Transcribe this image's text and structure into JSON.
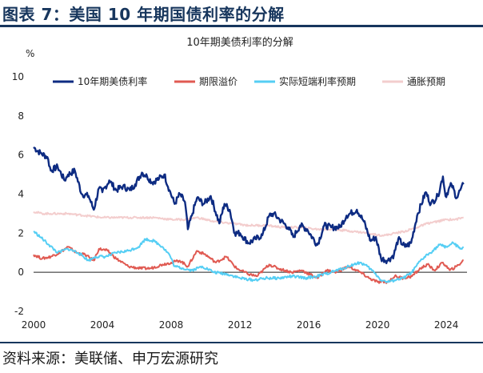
{
  "figure_title": "图表 7：美国 10 年期国债利率的分解",
  "source": "资料来源：美联储、申万宏源研究",
  "chart_data": {
    "type": "line",
    "title": "10年期美债利率的分解",
    "ylabel": "%",
    "xlim": [
      2000,
      2025.2
    ],
    "ylim": [
      -2,
      10
    ],
    "x_ticks": [
      "2000",
      "2004",
      "2008",
      "2012",
      "2016",
      "2020",
      "2024"
    ],
    "y_ticks": [
      "-2",
      "0",
      "2",
      "4",
      "6",
      "8",
      "10"
    ],
    "grid": false,
    "legend_position": "top",
    "series": [
      {
        "name": "10年期美债利率",
        "color": "#0d2b82",
        "points": [
          [
            2000.0,
            6.4
          ],
          [
            2000.4,
            6.1
          ],
          [
            2000.8,
            5.9
          ],
          [
            2001.0,
            5.2
          ],
          [
            2001.4,
            5.4
          ],
          [
            2001.8,
            4.7
          ],
          [
            2002.0,
            5.0
          ],
          [
            2002.4,
            5.2
          ],
          [
            2002.8,
            4.0
          ],
          [
            2003.2,
            3.9
          ],
          [
            2003.5,
            3.2
          ],
          [
            2003.8,
            4.3
          ],
          [
            2004.0,
            4.1
          ],
          [
            2004.4,
            4.7
          ],
          [
            2004.8,
            4.2
          ],
          [
            2005.2,
            4.4
          ],
          [
            2005.6,
            4.2
          ],
          [
            2005.9,
            4.5
          ],
          [
            2006.3,
            5.1
          ],
          [
            2006.6,
            4.9
          ],
          [
            2006.9,
            4.6
          ],
          [
            2007.3,
            4.8
          ],
          [
            2007.6,
            5.0
          ],
          [
            2007.9,
            4.2
          ],
          [
            2008.2,
            3.5
          ],
          [
            2008.5,
            4.0
          ],
          [
            2008.8,
            3.6
          ],
          [
            2008.97,
            2.2
          ],
          [
            2009.2,
            2.9
          ],
          [
            2009.5,
            3.8
          ],
          [
            2009.9,
            3.5
          ],
          [
            2010.3,
            3.9
          ],
          [
            2010.8,
            2.5
          ],
          [
            2011.1,
            3.5
          ],
          [
            2011.4,
            3.2
          ],
          [
            2011.7,
            2.0
          ],
          [
            2012.0,
            2.0
          ],
          [
            2012.5,
            1.5
          ],
          [
            2012.9,
            1.7
          ],
          [
            2013.3,
            1.9
          ],
          [
            2013.7,
            2.9
          ],
          [
            2013.95,
            3.0
          ],
          [
            2014.3,
            2.7
          ],
          [
            2014.8,
            2.3
          ],
          [
            2015.1,
            1.8
          ],
          [
            2015.5,
            2.4
          ],
          [
            2015.9,
            2.2
          ],
          [
            2016.5,
            1.4
          ],
          [
            2016.9,
            2.4
          ],
          [
            2017.3,
            2.3
          ],
          [
            2017.8,
            2.3
          ],
          [
            2018.2,
            2.9
          ],
          [
            2018.8,
            3.2
          ],
          [
            2019.2,
            2.6
          ],
          [
            2019.6,
            1.6
          ],
          [
            2019.9,
            1.8
          ],
          [
            2020.2,
            0.7
          ],
          [
            2020.6,
            0.6
          ],
          [
            2020.95,
            0.9
          ],
          [
            2021.2,
            1.7
          ],
          [
            2021.6,
            1.3
          ],
          [
            2021.95,
            1.5
          ],
          [
            2022.3,
            2.9
          ],
          [
            2022.8,
            4.1
          ],
          [
            2023.1,
            3.5
          ],
          [
            2023.5,
            3.9
          ],
          [
            2023.8,
            4.9
          ],
          [
            2023.95,
            3.9
          ],
          [
            2024.3,
            4.5
          ],
          [
            2024.6,
            3.8
          ],
          [
            2024.8,
            4.2
          ],
          [
            2025.0,
            4.5
          ]
        ]
      },
      {
        "name": "期限溢价",
        "color": "#e05a52",
        "points": [
          [
            2000.0,
            0.9
          ],
          [
            2000.5,
            0.7
          ],
          [
            2001.0,
            0.8
          ],
          [
            2001.5,
            1.0
          ],
          [
            2002.0,
            1.3
          ],
          [
            2002.5,
            1.0
          ],
          [
            2003.0,
            0.9
          ],
          [
            2003.5,
            0.6
          ],
          [
            2003.8,
            1.2
          ],
          [
            2004.3,
            1.1
          ],
          [
            2004.8,
            0.7
          ],
          [
            2005.5,
            0.3
          ],
          [
            2006.2,
            0.2
          ],
          [
            2006.8,
            0.2
          ],
          [
            2007.5,
            0.4
          ],
          [
            2008.0,
            0.5
          ],
          [
            2008.5,
            0.6
          ],
          [
            2008.97,
            0.3
          ],
          [
            2009.5,
            1.1
          ],
          [
            2010.0,
            0.9
          ],
          [
            2010.6,
            0.5
          ],
          [
            2011.2,
            0.8
          ],
          [
            2011.8,
            0.2
          ],
          [
            2012.5,
            -0.1
          ],
          [
            2013.0,
            -0.2
          ],
          [
            2013.7,
            0.4
          ],
          [
            2014.2,
            0.2
          ],
          [
            2015.0,
            0.0
          ],
          [
            2015.6,
            0.1
          ],
          [
            2016.5,
            -0.3
          ],
          [
            2017.0,
            0.1
          ],
          [
            2017.6,
            0.0
          ],
          [
            2018.3,
            0.3
          ],
          [
            2019.0,
            0.0
          ],
          [
            2019.5,
            -0.3
          ],
          [
            2020.0,
            -0.5
          ],
          [
            2020.6,
            -0.5
          ],
          [
            2021.0,
            -0.2
          ],
          [
            2021.5,
            -0.3
          ],
          [
            2022.0,
            -0.2
          ],
          [
            2022.5,
            0.2
          ],
          [
            2022.9,
            0.4
          ],
          [
            2023.3,
            0.1
          ],
          [
            2023.8,
            0.5
          ],
          [
            2024.2,
            0.1
          ],
          [
            2024.6,
            0.3
          ],
          [
            2025.0,
            0.6
          ]
        ]
      },
      {
        "name": "实际短端利率预期",
        "color": "#55cef4",
        "points": [
          [
            2000.0,
            2.1
          ],
          [
            2000.4,
            1.8
          ],
          [
            2000.9,
            1.4
          ],
          [
            2001.4,
            1.0
          ],
          [
            2002.0,
            1.2
          ],
          [
            2002.6,
            1.0
          ],
          [
            2003.2,
            0.6
          ],
          [
            2003.6,
            0.8
          ],
          [
            2004.2,
            0.8
          ],
          [
            2004.8,
            1.0
          ],
          [
            2005.5,
            1.1
          ],
          [
            2006.1,
            1.3
          ],
          [
            2006.5,
            1.7
          ],
          [
            2007.0,
            1.6
          ],
          [
            2007.5,
            1.3
          ],
          [
            2007.9,
            0.9
          ],
          [
            2008.2,
            0.3
          ],
          [
            2008.7,
            0.2
          ],
          [
            2009.2,
            0.1
          ],
          [
            2009.8,
            0.3
          ],
          [
            2010.5,
            0.0
          ],
          [
            2011.3,
            -0.1
          ],
          [
            2012.0,
            -0.3
          ],
          [
            2012.8,
            -0.4
          ],
          [
            2013.5,
            -0.3
          ],
          [
            2014.3,
            -0.3
          ],
          [
            2015.0,
            -0.2
          ],
          [
            2015.8,
            -0.3
          ],
          [
            2016.5,
            -0.2
          ],
          [
            2017.3,
            0.0
          ],
          [
            2018.0,
            0.2
          ],
          [
            2018.6,
            0.4
          ],
          [
            2019.0,
            0.5
          ],
          [
            2019.4,
            0.3
          ],
          [
            2019.8,
            0.0
          ],
          [
            2020.2,
            -0.4
          ],
          [
            2020.6,
            -0.5
          ],
          [
            2021.0,
            -0.4
          ],
          [
            2021.5,
            -0.3
          ],
          [
            2022.0,
            0.0
          ],
          [
            2022.5,
            0.6
          ],
          [
            2022.9,
            0.9
          ],
          [
            2023.2,
            1.1
          ],
          [
            2023.6,
            1.4
          ],
          [
            2024.0,
            1.3
          ],
          [
            2024.4,
            1.5
          ],
          [
            2024.8,
            1.2
          ],
          [
            2025.0,
            1.3
          ]
        ]
      },
      {
        "name": "通胀预期",
        "color": "#f3cdcd",
        "points": [
          [
            2000.0,
            3.1
          ],
          [
            2000.5,
            3.0
          ],
          [
            2001.0,
            3.0
          ],
          [
            2002.0,
            3.0
          ],
          [
            2003.0,
            2.9
          ],
          [
            2004.0,
            2.8
          ],
          [
            2005.0,
            2.8
          ],
          [
            2006.0,
            2.8
          ],
          [
            2007.0,
            2.8
          ],
          [
            2008.0,
            2.7
          ],
          [
            2008.9,
            2.7
          ],
          [
            2009.5,
            2.8
          ],
          [
            2010.5,
            2.6
          ],
          [
            2011.5,
            2.5
          ],
          [
            2012.5,
            2.4
          ],
          [
            2013.5,
            2.4
          ],
          [
            2014.5,
            2.3
          ],
          [
            2015.5,
            2.3
          ],
          [
            2016.5,
            2.2
          ],
          [
            2017.5,
            2.2
          ],
          [
            2018.5,
            2.1
          ],
          [
            2019.5,
            2.0
          ],
          [
            2020.0,
            1.9
          ],
          [
            2020.5,
            1.9
          ],
          [
            2021.0,
            2.0
          ],
          [
            2021.6,
            2.1
          ],
          [
            2022.3,
            2.3
          ],
          [
            2022.9,
            2.5
          ],
          [
            2023.5,
            2.6
          ],
          [
            2024.0,
            2.7
          ],
          [
            2024.5,
            2.7
          ],
          [
            2025.0,
            2.8
          ]
        ]
      }
    ]
  }
}
